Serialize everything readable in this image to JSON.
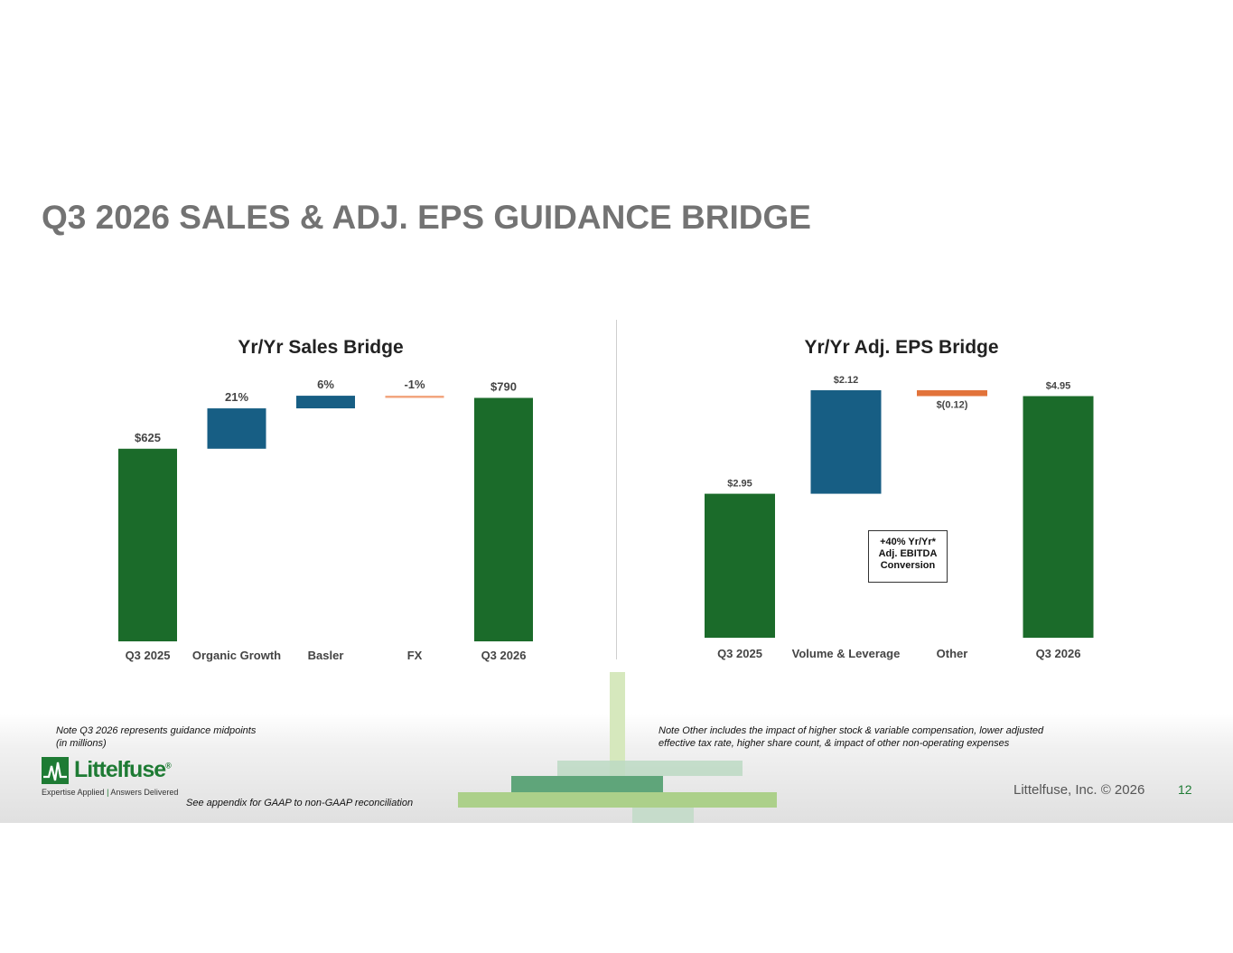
{
  "page": {
    "title": "Q3 2026 SALES & ADJ. EPS GUIDANCE BRIDGE",
    "page_number": "12",
    "copyright": "Littelfuse, Inc. © 2026"
  },
  "notes": {
    "left_line1": "Note Q3 2026 represents guidance midpoints",
    "left_line2": "(in millions)",
    "right_line1": "Note Other includes the impact of higher stock & variable compensation, lower adjusted",
    "right_line2": "effective tax rate, higher share count, & impact of other non-operating expenses",
    "appendix": "See appendix for GAAP to non-GAAP reconciliation"
  },
  "logo": {
    "word": "Littelfuse",
    "registered": "®",
    "tag_left": "Expertise Applied",
    "tag_right": "Answers Delivered",
    "icon": "littelfuse-logo-icon"
  },
  "callout": {
    "line1": "+40% Yr/Yr*",
    "line2": "Adj. EBITDA",
    "line3": "Conversion"
  },
  "colors": {
    "total": "#1b6b2a",
    "increase": "#175e84",
    "decrease_sales": "#f2a27a",
    "decrease_eps": "#e2733a",
    "label": "#444444"
  },
  "chart_data": [
    {
      "type": "bar",
      "subtype": "waterfall",
      "title": "Yr/Yr Sales Bridge",
      "categories": [
        "Q3 2025",
        "Organic Growth",
        "Basler",
        "FX",
        "Q3 2026"
      ],
      "values": [
        625,
        131,
        41,
        -7,
        790
      ],
      "kinds": [
        "total",
        "increase",
        "increase",
        "decrease",
        "total"
      ],
      "data_labels": [
        "$625",
        "21%",
        "6%",
        "-1%",
        "$790"
      ],
      "ylim": [
        0,
        850
      ],
      "grid": false,
      "legend": "none"
    },
    {
      "type": "bar",
      "subtype": "waterfall",
      "title": "Yr/Yr Adj. EPS Bridge",
      "categories": [
        "Q3 2025",
        "Volume & Leverage",
        "Other",
        "Q3 2026"
      ],
      "values": [
        2.95,
        2.12,
        -0.12,
        4.95
      ],
      "kinds": [
        "total",
        "increase",
        "decrease",
        "total"
      ],
      "data_labels": [
        "$2.95",
        "$2.12",
        "$(0.12)",
        "$4.95"
      ],
      "ylim": [
        0,
        5.2
      ],
      "grid": false,
      "legend": "none"
    }
  ]
}
